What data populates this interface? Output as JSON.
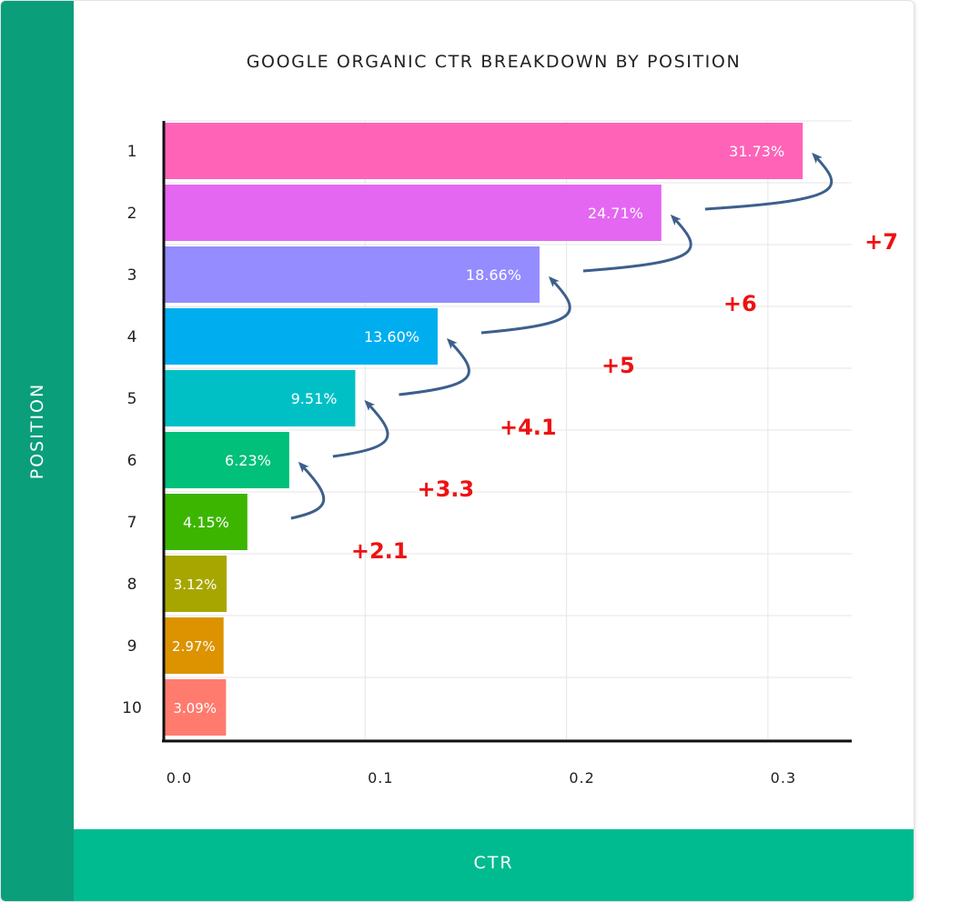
{
  "chart_data": {
    "type": "bar",
    "orientation": "horizontal",
    "title": "GOOGLE ORGANIC CTR BREAKDOWN BY POSITION",
    "xlabel": "CTR",
    "ylabel": "POSITION",
    "categories": [
      "1",
      "2",
      "3",
      "4",
      "5",
      "6",
      "7",
      "8",
      "9",
      "10"
    ],
    "values": [
      0.3173,
      0.2471,
      0.1866,
      0.136,
      0.0951,
      0.0623,
      0.0415,
      0.0312,
      0.0297,
      0.0309
    ],
    "value_labels": [
      "31.73%",
      "24.71%",
      "18.66%",
      "13.60%",
      "9.51%",
      "6.23%",
      "4.15%",
      "3.12%",
      "2.97%",
      "3.09%"
    ],
    "bar_colors": [
      "#ff63b8",
      "#e467f2",
      "#958cff",
      "#00aeef",
      "#00c0c6",
      "#00c07a",
      "#3cb500",
      "#a7a600",
      "#dd9300",
      "#ff7b6e"
    ],
    "xlim": [
      0,
      0.34
    ],
    "xticks": [
      0.0,
      0.1,
      0.2,
      0.3
    ],
    "xtick_labels": [
      "0.0",
      "0.1",
      "0.2",
      "0.3"
    ],
    "grid": true,
    "annotations": [
      {
        "from": "2",
        "to": "1",
        "label": "+7"
      },
      {
        "from": "3",
        "to": "2",
        "label": "+6"
      },
      {
        "from": "4",
        "to": "3",
        "label": "+5"
      },
      {
        "from": "5",
        "to": "4",
        "label": "+4.1"
      },
      {
        "from": "6",
        "to": "5",
        "label": "+3.3"
      },
      {
        "from": "7",
        "to": "6",
        "label": "+2.1"
      }
    ],
    "annotation_color": "#ee1111",
    "arrow_color": "#3d5f8c"
  }
}
